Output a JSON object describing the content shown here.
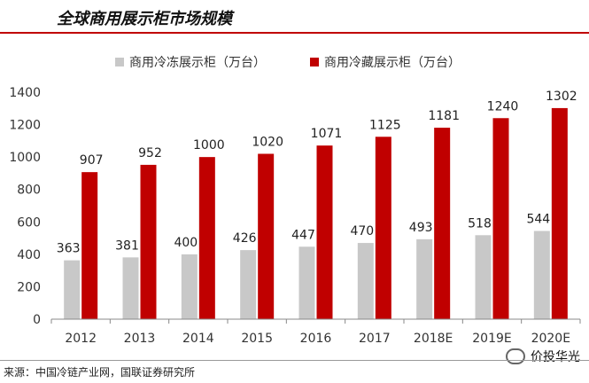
{
  "header": {
    "title": "全球商用展示柜市场规模"
  },
  "source": {
    "text": "来源：中国冷链产业网，国联证券研究所"
  },
  "watermark": {
    "text": "价投华光",
    "icon": "wechat-icon"
  },
  "chart_data": {
    "type": "bar",
    "title": "",
    "xlabel": "",
    "ylabel": "",
    "ylim": [
      0,
      1400
    ],
    "yticks": [
      0,
      200,
      400,
      600,
      800,
      1000,
      1200,
      1400
    ],
    "categories": [
      "2012",
      "2013",
      "2014",
      "2015",
      "2016",
      "2017",
      "2018E",
      "2019E",
      "2020E"
    ],
    "legend_position": "top",
    "grid": false,
    "series": [
      {
        "name": "商用冷冻展示柜（万台）",
        "color": "#c8c8c8",
        "values": [
          363,
          381,
          400,
          426,
          447,
          470,
          493,
          518,
          544
        ]
      },
      {
        "name": "商用冷藏展示柜（万台）",
        "color": "#c00000",
        "values": [
          907,
          952,
          1000,
          1020,
          1071,
          1125,
          1181,
          1240,
          1302
        ]
      }
    ]
  }
}
